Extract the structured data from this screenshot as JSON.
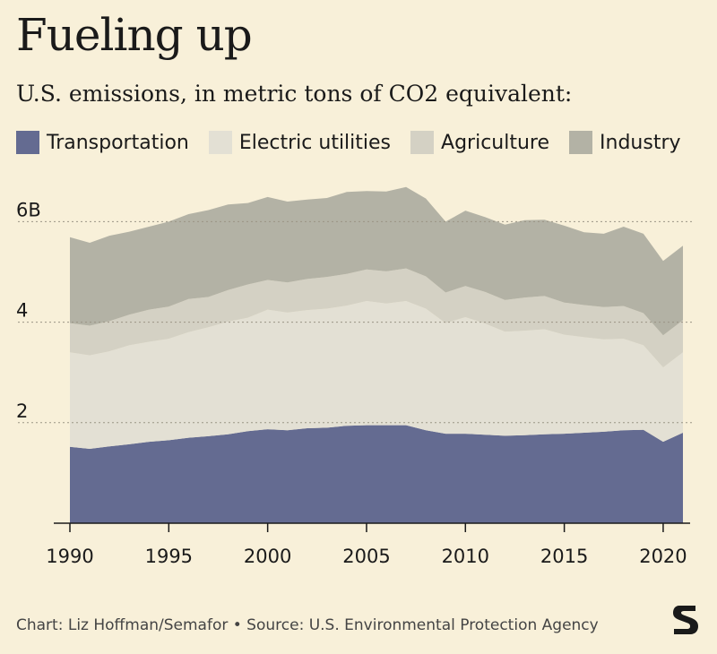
{
  "title": "Fueling up",
  "subtitle": "U.S. emissions, in metric tons of CO2 equivalent:",
  "source": "Chart: Liz Hoffman/Semafor • Source: U.S. Environmental Protection Agency",
  "logo_icon": "semafor-s-logo-icon",
  "legend": [
    {
      "label": "Transportation",
      "color": "#646b91"
    },
    {
      "label": "Electric utilities",
      "color": "#e3e0d4"
    },
    {
      "label": "Agriculture",
      "color": "#d4d1c4"
    },
    {
      "label": "Industry",
      "color": "#b3b2a5"
    }
  ],
  "chart_data": {
    "type": "area",
    "stacked": true,
    "x": [
      1990,
      1991,
      1992,
      1993,
      1994,
      1995,
      1996,
      1997,
      1998,
      1999,
      2000,
      2001,
      2002,
      2003,
      2004,
      2005,
      2006,
      2007,
      2008,
      2009,
      2010,
      2011,
      2012,
      2013,
      2014,
      2015,
      2016,
      2017,
      2018,
      2019,
      2020,
      2021
    ],
    "series": [
      {
        "name": "Transportation",
        "color": "#646b91",
        "values": [
          1.52,
          1.48,
          1.53,
          1.57,
          1.62,
          1.65,
          1.7,
          1.73,
          1.77,
          1.83,
          1.87,
          1.85,
          1.89,
          1.9,
          1.94,
          1.95,
          1.95,
          1.95,
          1.85,
          1.78,
          1.78,
          1.76,
          1.74,
          1.75,
          1.77,
          1.78,
          1.8,
          1.82,
          1.85,
          1.86,
          1.62,
          1.8
        ]
      },
      {
        "name": "Electric utilities",
        "color": "#e3e0d4",
        "values": [
          1.88,
          1.86,
          1.89,
          1.97,
          1.99,
          2.02,
          2.1,
          2.17,
          2.24,
          2.26,
          2.38,
          2.34,
          2.35,
          2.37,
          2.39,
          2.47,
          2.42,
          2.47,
          2.42,
          2.2,
          2.32,
          2.21,
          2.07,
          2.08,
          2.09,
          1.97,
          1.9,
          1.84,
          1.82,
          1.68,
          1.48,
          1.6
        ]
      },
      {
        "name": "Agriculture",
        "color": "#d4d1c4",
        "values": [
          0.58,
          0.59,
          0.6,
          0.61,
          0.64,
          0.64,
          0.66,
          0.6,
          0.63,
          0.66,
          0.59,
          0.6,
          0.62,
          0.63,
          0.63,
          0.63,
          0.64,
          0.65,
          0.64,
          0.61,
          0.62,
          0.63,
          0.63,
          0.66,
          0.66,
          0.64,
          0.64,
          0.64,
          0.65,
          0.64,
          0.64,
          0.64
        ]
      },
      {
        "name": "Industry",
        "color": "#b3b2a5",
        "values": [
          1.71,
          1.65,
          1.7,
          1.65,
          1.65,
          1.69,
          1.69,
          1.73,
          1.7,
          1.62,
          1.65,
          1.61,
          1.58,
          1.57,
          1.63,
          1.56,
          1.59,
          1.62,
          1.55,
          1.41,
          1.5,
          1.49,
          1.5,
          1.54,
          1.52,
          1.53,
          1.45,
          1.46,
          1.58,
          1.58,
          1.48,
          1.48
        ]
      }
    ],
    "ylim": [
      0,
      6.9
    ],
    "yticks": [
      2,
      4,
      6
    ],
    "ytick_labels": [
      "2",
      "4",
      "6B"
    ],
    "xticks": [
      1990,
      1995,
      2000,
      2005,
      2010,
      2015,
      2020
    ],
    "xtick_labels": [
      "1990",
      "1995",
      "2000",
      "2005",
      "2010",
      "2015",
      "2020"
    ],
    "gridlines": "dashed-horizontal",
    "legend_position": "top"
  }
}
